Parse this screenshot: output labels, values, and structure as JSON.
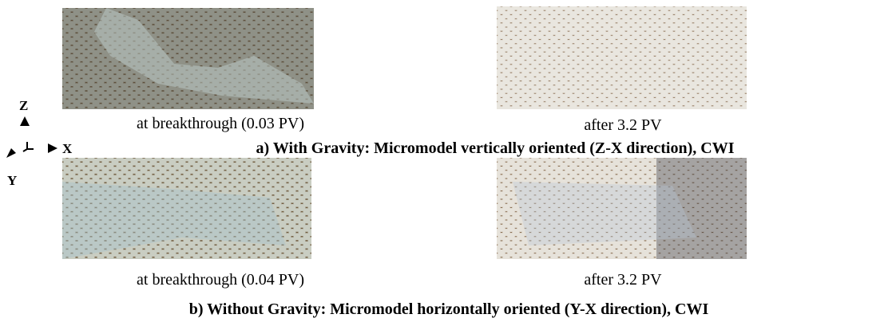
{
  "panels": [
    {
      "left_caption": "at breakthrough (0.03 PV)",
      "right_caption": "after 3.2 PV",
      "title": "a) With Gravity: Micromodel vertically oriented (Z-X direction), CWI"
    },
    {
      "left_caption": "at breakthrough (0.04 PV)",
      "right_caption": "after 3.2 PV",
      "title": "b) Without Gravity: Micromodel horizontally oriented (Y-X direction), CWI"
    }
  ],
  "axes": {
    "z": "Z",
    "x": "X",
    "y": "Y"
  }
}
